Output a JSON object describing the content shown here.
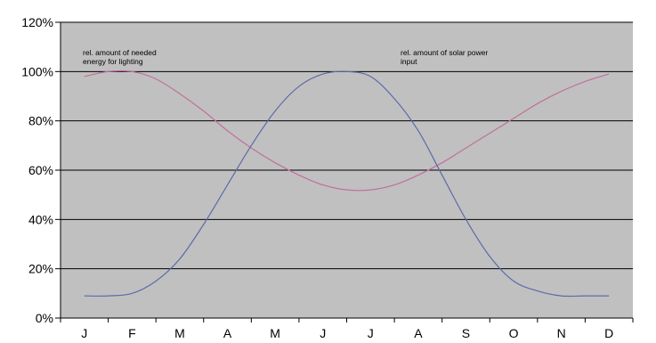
{
  "chart_data": {
    "type": "line",
    "categories": [
      "J",
      "F",
      "M",
      "A",
      "M",
      "J",
      "J",
      "A",
      "S",
      "O",
      "N",
      "D"
    ],
    "yticks": [
      "0%",
      "20%",
      "40%",
      "60%",
      "80%",
      "100%",
      "120%"
    ],
    "ylim": [
      0,
      120
    ],
    "grid": true,
    "series": [
      {
        "name": "rel. amount of needed energy for lighting",
        "name_lines": [
          "rel. amount of needed",
          "energy for lighting"
        ],
        "color": "#c0709a",
        "points": [
          [
            0,
            98
          ],
          [
            0.5,
            100
          ],
          [
            1,
            100
          ],
          [
            1.5,
            97
          ],
          [
            2,
            91
          ],
          [
            2.5,
            84
          ],
          [
            3,
            76
          ],
          [
            3.5,
            69
          ],
          [
            4,
            63
          ],
          [
            4.5,
            58
          ],
          [
            5,
            54
          ],
          [
            5.5,
            52
          ],
          [
            6,
            52
          ],
          [
            6.5,
            54
          ],
          [
            7,
            58
          ],
          [
            7.5,
            63
          ],
          [
            8,
            69
          ],
          [
            8.5,
            75
          ],
          [
            9,
            81
          ],
          [
            9.5,
            87
          ],
          [
            10,
            92
          ],
          [
            10.5,
            96
          ],
          [
            11,
            99
          ]
        ]
      },
      {
        "name": "rel. amount of solar power input",
        "name_lines": [
          "rel. amount of solar power",
          "input"
        ],
        "color": "#5e6aa8",
        "points": [
          [
            0,
            9
          ],
          [
            0.5,
            9
          ],
          [
            1,
            10
          ],
          [
            1.5,
            15
          ],
          [
            2,
            24
          ],
          [
            2.5,
            38
          ],
          [
            3,
            54
          ],
          [
            3.5,
            70
          ],
          [
            4,
            84
          ],
          [
            4.5,
            94
          ],
          [
            5,
            99
          ],
          [
            5.5,
            100
          ],
          [
            6,
            98
          ],
          [
            6.5,
            89
          ],
          [
            7,
            76
          ],
          [
            7.5,
            58
          ],
          [
            8,
            40
          ],
          [
            8.5,
            25
          ],
          [
            9,
            15
          ],
          [
            9.5,
            11
          ],
          [
            10,
            9
          ],
          [
            10.5,
            9
          ],
          [
            11,
            9
          ]
        ]
      }
    ],
    "colors": {
      "plot_bg": "#c0c0c0",
      "grid": "#000000",
      "axis": "#000000"
    }
  }
}
